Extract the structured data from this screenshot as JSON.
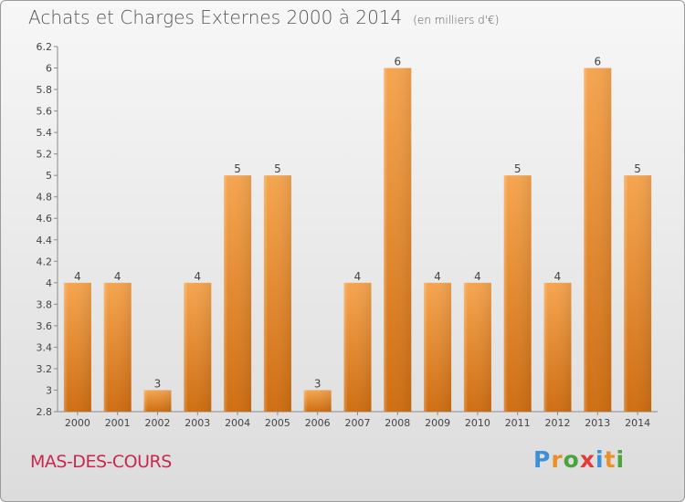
{
  "page": {
    "title": "Achats et Charges Externes 2000 à 2014",
    "unit": "(en milliers d'€)",
    "commune": "MAS-DES-COURS",
    "brand": "Proxiti"
  },
  "colors": {
    "bar_light": "#f6a54f",
    "bar_dark": "#cf6e12",
    "commune_text": "#c8294e",
    "axis_text": "#444444",
    "brand_letters": [
      "#3d8fd6",
      "#e8912b",
      "#4aa33c",
      "#e23b3b",
      "#3d8fd6",
      "#e8912b",
      "#4aa33c"
    ]
  },
  "chart_data": {
    "type": "bar",
    "title": "Achats et Charges Externes 2000 à 2014",
    "subtitle": "(en milliers d'€)",
    "categories": [
      "2000",
      "2001",
      "2002",
      "2003",
      "2004",
      "2005",
      "2006",
      "2007",
      "2008",
      "2009",
      "2010",
      "2011",
      "2012",
      "2013",
      "2014"
    ],
    "values": [
      4,
      4,
      3,
      4,
      5,
      5,
      3,
      4,
      6,
      4,
      4,
      5,
      4,
      6,
      5
    ],
    "data_labels": [
      "4",
      "4",
      "3",
      "4",
      "5",
      "5",
      "3",
      "4",
      "6",
      "4",
      "4",
      "5",
      "4",
      "6",
      "5"
    ],
    "y_ticks": [
      "2.8",
      "3",
      "3.2",
      "3.4",
      "3.6",
      "3.8",
      "4",
      "4.2",
      "4.4",
      "4.6",
      "4.8",
      "5",
      "5.2",
      "5.4",
      "5.6",
      "5.8",
      "6",
      "6.2"
    ],
    "y_tick_values": [
      2.8,
      3.0,
      3.2,
      3.4,
      3.6,
      3.8,
      4.0,
      4.2,
      4.4,
      4.6,
      4.8,
      5.0,
      5.2,
      5.4,
      5.6,
      5.8,
      6.0,
      6.2
    ],
    "ylim": [
      2.8,
      6.2
    ],
    "xlabel": "",
    "ylabel": "",
    "grid": false
  }
}
